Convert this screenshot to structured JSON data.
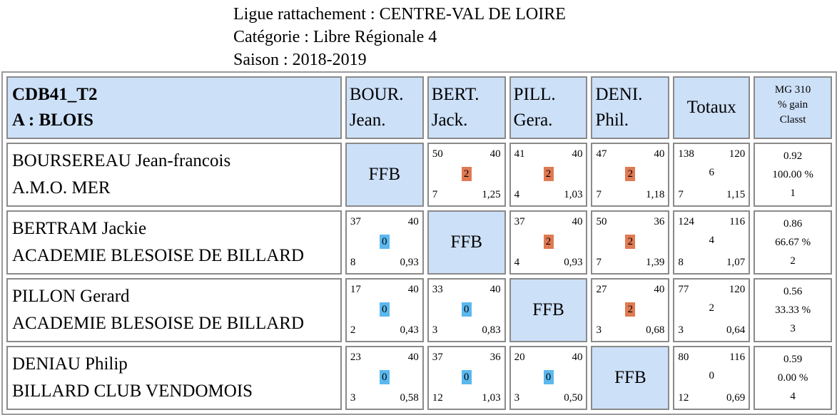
{
  "header": {
    "ligue": "Ligue rattachement : CENTRE-VAL DE LOIRE",
    "categorie": "Catégorie : Libre Régionale 4",
    "saison": "Saison : 2018-2019"
  },
  "table": {
    "title_line1": "CDB41_T2",
    "title_line2": "A : BLOIS",
    "columns": [
      {
        "line1": "BOUR.",
        "line2": "Jean."
      },
      {
        "line1": "BERT.",
        "line2": "Jack."
      },
      {
        "line1": "PILL.",
        "line2": "Gera."
      },
      {
        "line1": "DENI.",
        "line2": "Phil."
      }
    ],
    "totals_label": "Totaux",
    "mg_header": {
      "line1": "MG 310",
      "line2": "% gain",
      "line3": "Classt"
    },
    "ffb_label": "FFB",
    "rows": [
      {
        "name": "BOURSEREAU Jean-francois",
        "club": "A.M.O. MER",
        "cells": [
          null,
          {
            "points": "50",
            "target": "40",
            "result": "2",
            "innings": "7",
            "avg": "1,25"
          },
          {
            "points": "41",
            "target": "40",
            "result": "2",
            "innings": "4",
            "avg": "1,03"
          },
          {
            "points": "47",
            "target": "40",
            "result": "2",
            "innings": "7",
            "avg": "1,18"
          }
        ],
        "totals": {
          "points": "138",
          "target": "120",
          "result": "6",
          "innings": "7",
          "avg": "1,15"
        },
        "mg": {
          "mg": "0.92",
          "gain": "100.00 %",
          "rank": "1"
        }
      },
      {
        "name": "BERTRAM Jackie",
        "club": "ACADEMIE BLESOISE DE BILLARD",
        "cells": [
          {
            "points": "37",
            "target": "40",
            "result": "0",
            "innings": "8",
            "avg": "0,93"
          },
          null,
          {
            "points": "37",
            "target": "40",
            "result": "2",
            "innings": "4",
            "avg": "0,93"
          },
          {
            "points": "50",
            "target": "36",
            "result": "2",
            "innings": "7",
            "avg": "1,39"
          }
        ],
        "totals": {
          "points": "124",
          "target": "116",
          "result": "4",
          "innings": "8",
          "avg": "1,07"
        },
        "mg": {
          "mg": "0.86",
          "gain": "66.67 %",
          "rank": "2"
        }
      },
      {
        "name": "PILLON Gerard",
        "club": "ACADEMIE BLESOISE DE BILLARD",
        "cells": [
          {
            "points": "17",
            "target": "40",
            "result": "0",
            "innings": "2",
            "avg": "0,43"
          },
          {
            "points": "33",
            "target": "40",
            "result": "0",
            "innings": "3",
            "avg": "0,83"
          },
          null,
          {
            "points": "27",
            "target": "40",
            "result": "2",
            "innings": "3",
            "avg": "0,68"
          }
        ],
        "totals": {
          "points": "77",
          "target": "120",
          "result": "2",
          "innings": "3",
          "avg": "0,64"
        },
        "mg": {
          "mg": "0.56",
          "gain": "33.33 %",
          "rank": "3"
        }
      },
      {
        "name": "DENIAU Philip",
        "club": "BILLARD CLUB VENDOMOIS",
        "cells": [
          {
            "points": "23",
            "target": "40",
            "result": "0",
            "innings": "3",
            "avg": "0,58"
          },
          {
            "points": "37",
            "target": "36",
            "result": "0",
            "innings": "12",
            "avg": "1,03"
          },
          {
            "points": "20",
            "target": "40",
            "result": "0",
            "innings": "3",
            "avg": "0,50"
          },
          null
        ],
        "totals": {
          "points": "80",
          "target": "116",
          "result": "0",
          "innings": "12",
          "avg": "0,69"
        },
        "mg": {
          "mg": "0.59",
          "gain": "0.00 %",
          "rank": "4"
        }
      }
    ]
  },
  "colors": {
    "header_bg": "#cce0f8",
    "win_badge": "#e07a52",
    "loss_badge": "#5bb8ee"
  }
}
